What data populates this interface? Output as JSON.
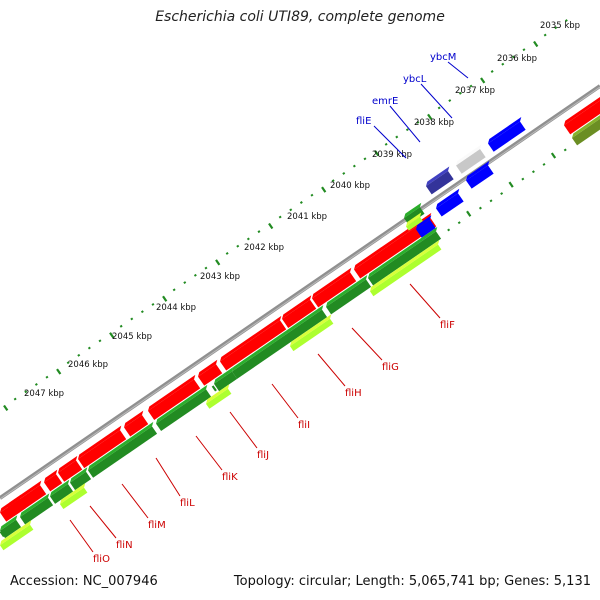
{
  "title": "Escherichia coli UTI89, complete genome",
  "accession": "Accession: NC_007946",
  "summary": "Topology: circular; Length: 5,065,741 bp; Genes: 5,131",
  "colors": {
    "backbone": "#808080",
    "forward_cds": "#ff0000",
    "reverse_cds": "#228b22",
    "gc_positive": "#adff2f",
    "ticks": "#228b22",
    "gene_label_red": "#cc0000",
    "gene_label_blue": "#0000cc",
    "feature_blue": "#0000ff",
    "feature_navy": "#33339a",
    "feature_gray": "#c8c8c8",
    "feature_olive": "#6b8e23"
  },
  "kbp_labels": [
    "2035 kbp",
    "2036 kbp",
    "2037 kbp",
    "2038 kbp",
    "2039 kbp",
    "2040 kbp",
    "2041 kbp",
    "2042 kbp",
    "2043 kbp",
    "2044 kbp",
    "2045 kbp",
    "2046 kbp",
    "2047 kbp"
  ],
  "gene_labels_top": [
    "ybcM",
    "ybcL",
    "emrE",
    "fliE"
  ],
  "gene_labels_bottom": [
    "fliF",
    "fliG",
    "fliH",
    "fliI",
    "fliJ",
    "fliK",
    "fliL",
    "fliM",
    "fliN",
    "fliO"
  ]
}
